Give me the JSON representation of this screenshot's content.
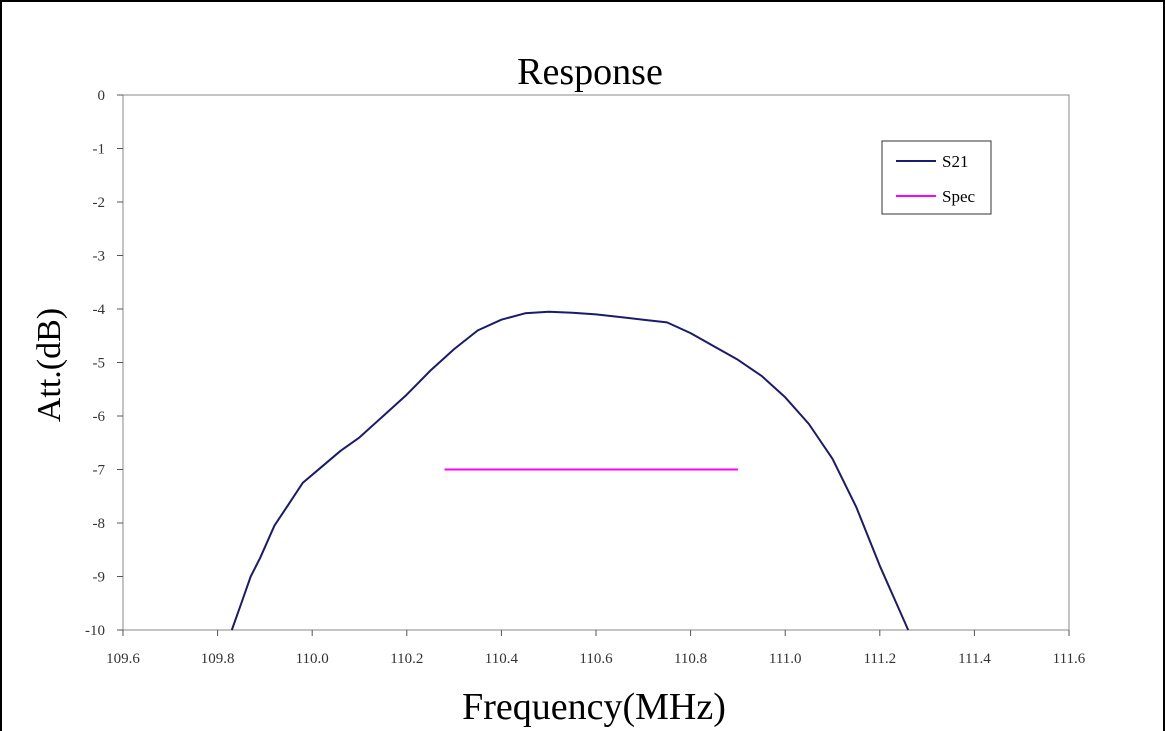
{
  "chart_data": {
    "type": "line",
    "title": "Response",
    "xlabel": "Frequency(MHz)",
    "ylabel": "Att.(dB)",
    "xlim": [
      109.6,
      111.6
    ],
    "ylim": [
      -10,
      0
    ],
    "x_ticks": [
      "109.6",
      "109.8",
      "110.0",
      "110.2",
      "110.4",
      "110.6",
      "110.8",
      "111.0",
      "111.2",
      "111.4",
      "111.6"
    ],
    "y_ticks": [
      "0",
      "-1",
      "-2",
      "-3",
      "-4",
      "-5",
      "-6",
      "-7",
      "-8",
      "-9",
      "-10"
    ],
    "grid": false,
    "legend_position": "top-right",
    "series": [
      {
        "name": "S21",
        "color": "#1a1a6e",
        "points": [
          [
            109.83,
            -10.0
          ],
          [
            109.85,
            -9.5
          ],
          [
            109.87,
            -9.0
          ],
          [
            109.89,
            -8.65
          ],
          [
            109.92,
            -8.05
          ],
          [
            109.95,
            -7.65
          ],
          [
            109.98,
            -7.25
          ],
          [
            110.02,
            -6.95
          ],
          [
            110.06,
            -6.65
          ],
          [
            110.1,
            -6.4
          ],
          [
            110.15,
            -6.0
          ],
          [
            110.2,
            -5.6
          ],
          [
            110.25,
            -5.15
          ],
          [
            110.3,
            -4.75
          ],
          [
            110.35,
            -4.4
          ],
          [
            110.4,
            -4.2
          ],
          [
            110.45,
            -4.08
          ],
          [
            110.5,
            -4.05
          ],
          [
            110.55,
            -4.07
          ],
          [
            110.6,
            -4.1
          ],
          [
            110.65,
            -4.15
          ],
          [
            110.7,
            -4.2
          ],
          [
            110.75,
            -4.25
          ],
          [
            110.8,
            -4.45
          ],
          [
            110.85,
            -4.7
          ],
          [
            110.9,
            -4.95
          ],
          [
            110.95,
            -5.25
          ],
          [
            111.0,
            -5.65
          ],
          [
            111.05,
            -6.15
          ],
          [
            111.1,
            -6.8
          ],
          [
            111.15,
            -7.7
          ],
          [
            111.2,
            -8.8
          ],
          [
            111.23,
            -9.4
          ],
          [
            111.26,
            -10.0
          ]
        ]
      },
      {
        "name": "Spec",
        "color": "#ff00ff",
        "points": [
          [
            110.28,
            -7.0
          ],
          [
            110.9,
            -7.0
          ]
        ]
      }
    ]
  }
}
